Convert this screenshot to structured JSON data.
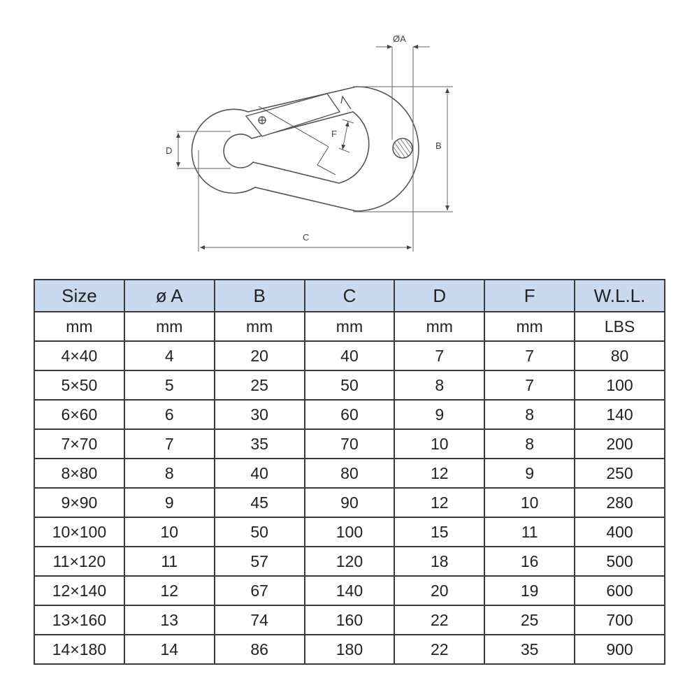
{
  "diagram": {
    "labels": {
      "a": "ØA",
      "b": "B",
      "c": "C",
      "d": "D",
      "f": "F"
    },
    "colors": {
      "line": "#555555",
      "header_bg": "#c9daf0"
    }
  },
  "table": {
    "headers": [
      "Size",
      "ø A",
      "B",
      "C",
      "D",
      "F",
      "W.L.L."
    ],
    "units": [
      "mm",
      "mm",
      "mm",
      "mm",
      "mm",
      "mm",
      "LBS"
    ],
    "rows": [
      [
        "4×40",
        "4",
        "20",
        "40",
        "7",
        "7",
        "80"
      ],
      [
        "5×50",
        "5",
        "25",
        "50",
        "8",
        "7",
        "100"
      ],
      [
        "6×60",
        "6",
        "30",
        "60",
        "9",
        "8",
        "140"
      ],
      [
        "7×70",
        "7",
        "35",
        "70",
        "10",
        "8",
        "200"
      ],
      [
        "8×80",
        "8",
        "40",
        "80",
        "12",
        "9",
        "250"
      ],
      [
        "9×90",
        "9",
        "45",
        "90",
        "12",
        "10",
        "280"
      ],
      [
        "10×100",
        "10",
        "50",
        "100",
        "15",
        "11",
        "400"
      ],
      [
        "11×120",
        "11",
        "57",
        "120",
        "18",
        "16",
        "500"
      ],
      [
        "12×140",
        "12",
        "67",
        "140",
        "20",
        "19",
        "600"
      ],
      [
        "13×160",
        "13",
        "74",
        "160",
        "22",
        "25",
        "700"
      ],
      [
        "14×180",
        "14",
        "86",
        "180",
        "22",
        "35",
        "900"
      ]
    ]
  }
}
